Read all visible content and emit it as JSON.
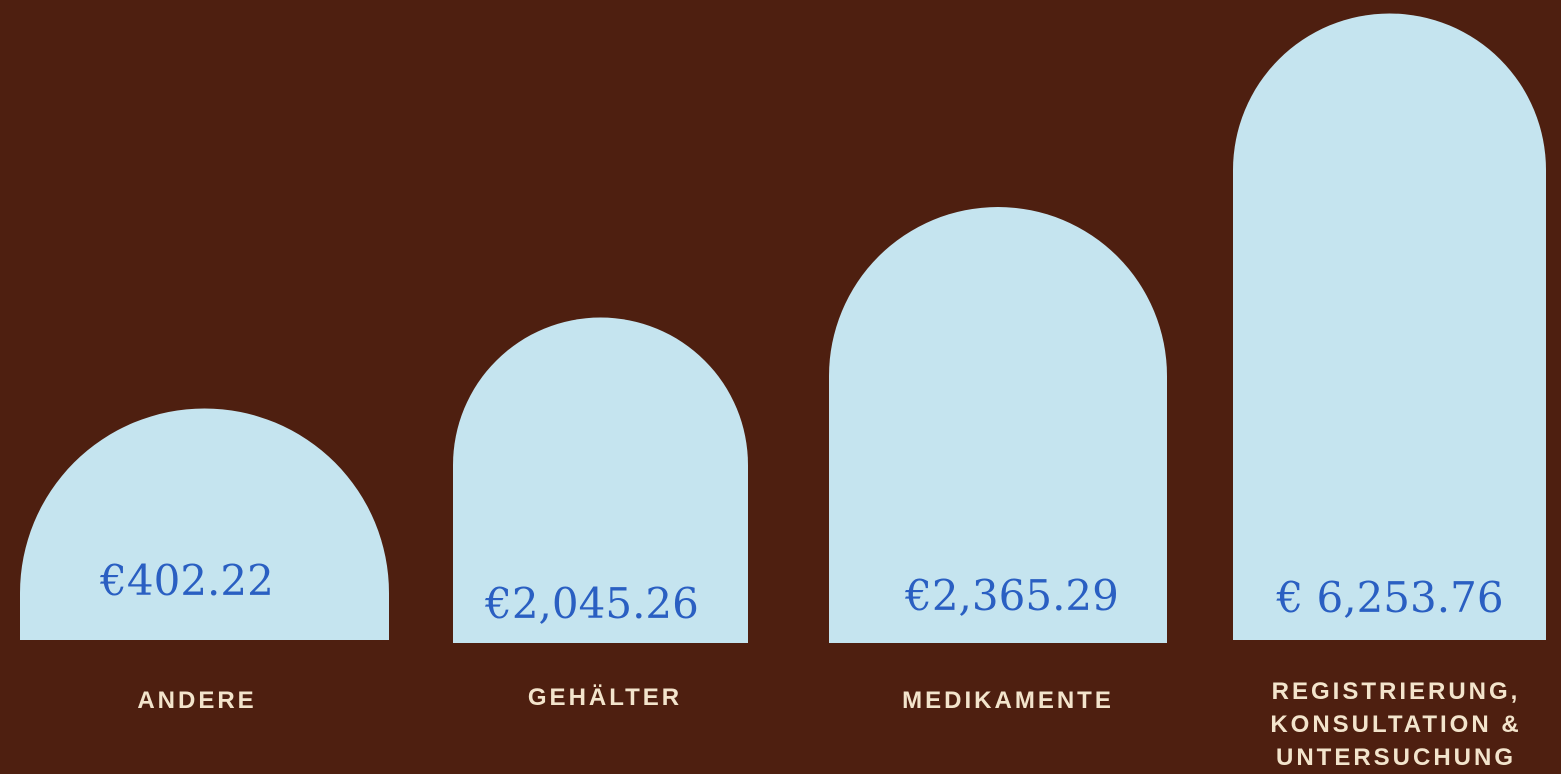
{
  "items": [
    {
      "amount": "€402.22",
      "label": [
        "ANDERE"
      ]
    },
    {
      "amount": "€2,045.26",
      "label": [
        "GEHÄLTER"
      ]
    },
    {
      "amount": "€2,365.29",
      "label": [
        "MEDIKAMENTE"
      ]
    },
    {
      "amount": "€ 6,253.76",
      "label": [
        "REGISTRIERUNG,",
        "KONSULTATION &",
        "UNTERSUCHUNG"
      ]
    }
  ]
}
